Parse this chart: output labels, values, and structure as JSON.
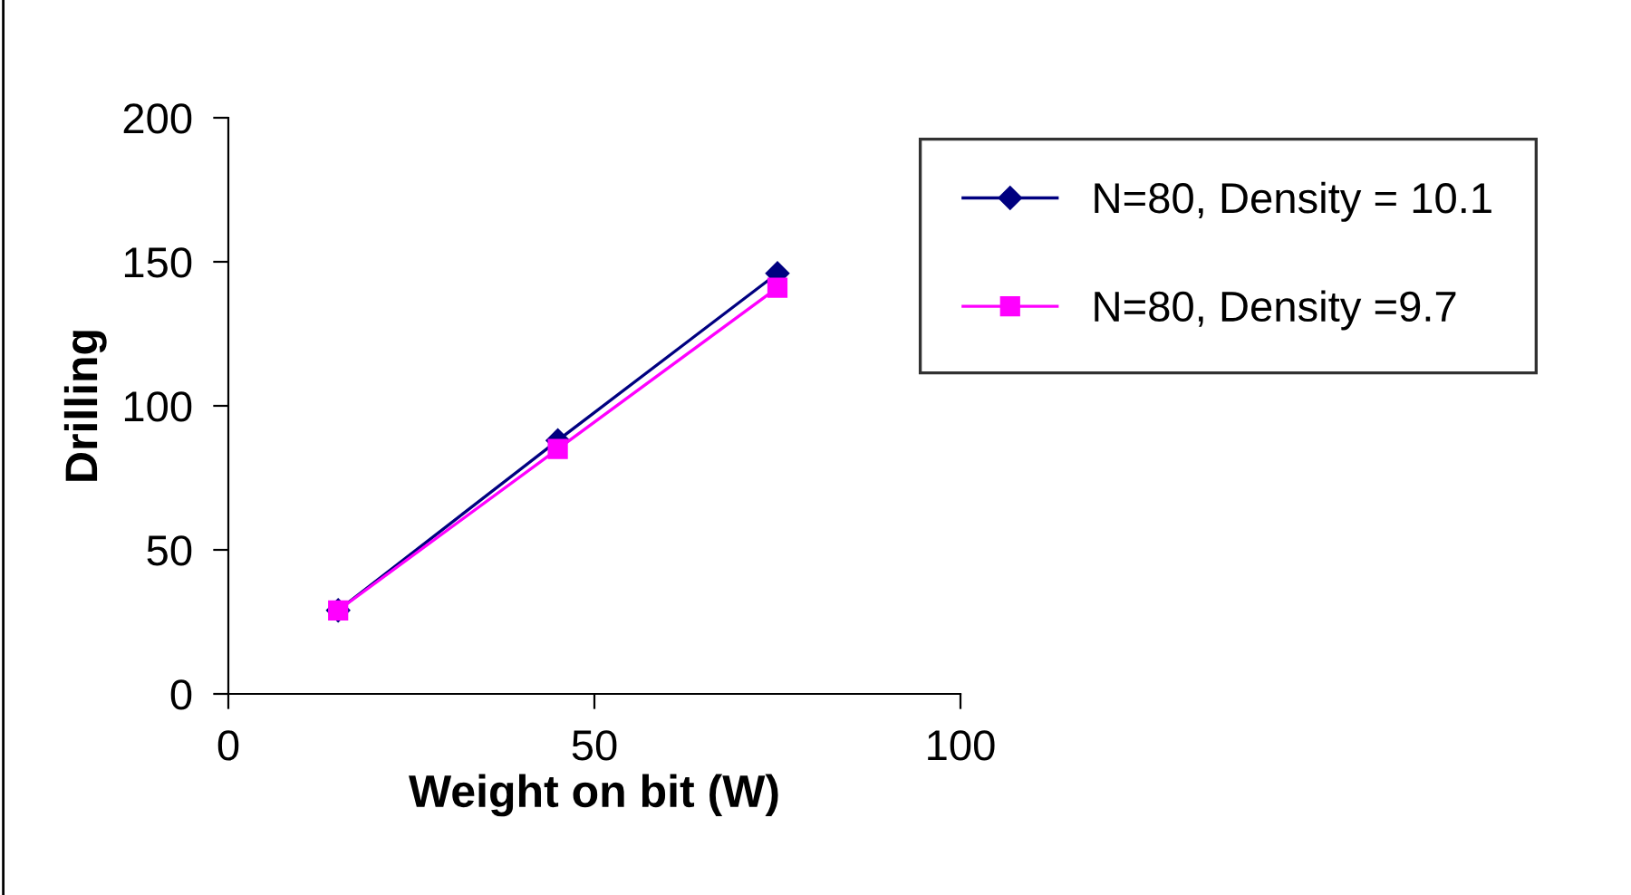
{
  "chart_data": {
    "type": "line",
    "xlabel": "Weight on bit (W)",
    "ylabel": "Drilling",
    "x": [
      15,
      45,
      75
    ],
    "series": [
      {
        "name": "N=80, Density = 10.1",
        "color": "#000080",
        "values": [
          29,
          88,
          146
        ],
        "marker": "diamond"
      },
      {
        "name": "N=80, Density =9.7",
        "color": "#ff00ff",
        "values": [
          29,
          85,
          141
        ],
        "marker": "square"
      }
    ],
    "xlim": [
      0,
      100
    ],
    "xticks": [
      0,
      50,
      100
    ],
    "ylim": [
      0,
      200
    ],
    "yticks": [
      0,
      50,
      100,
      150,
      200
    ],
    "grid": false,
    "legend": "top right",
    "line_style": "solid"
  }
}
